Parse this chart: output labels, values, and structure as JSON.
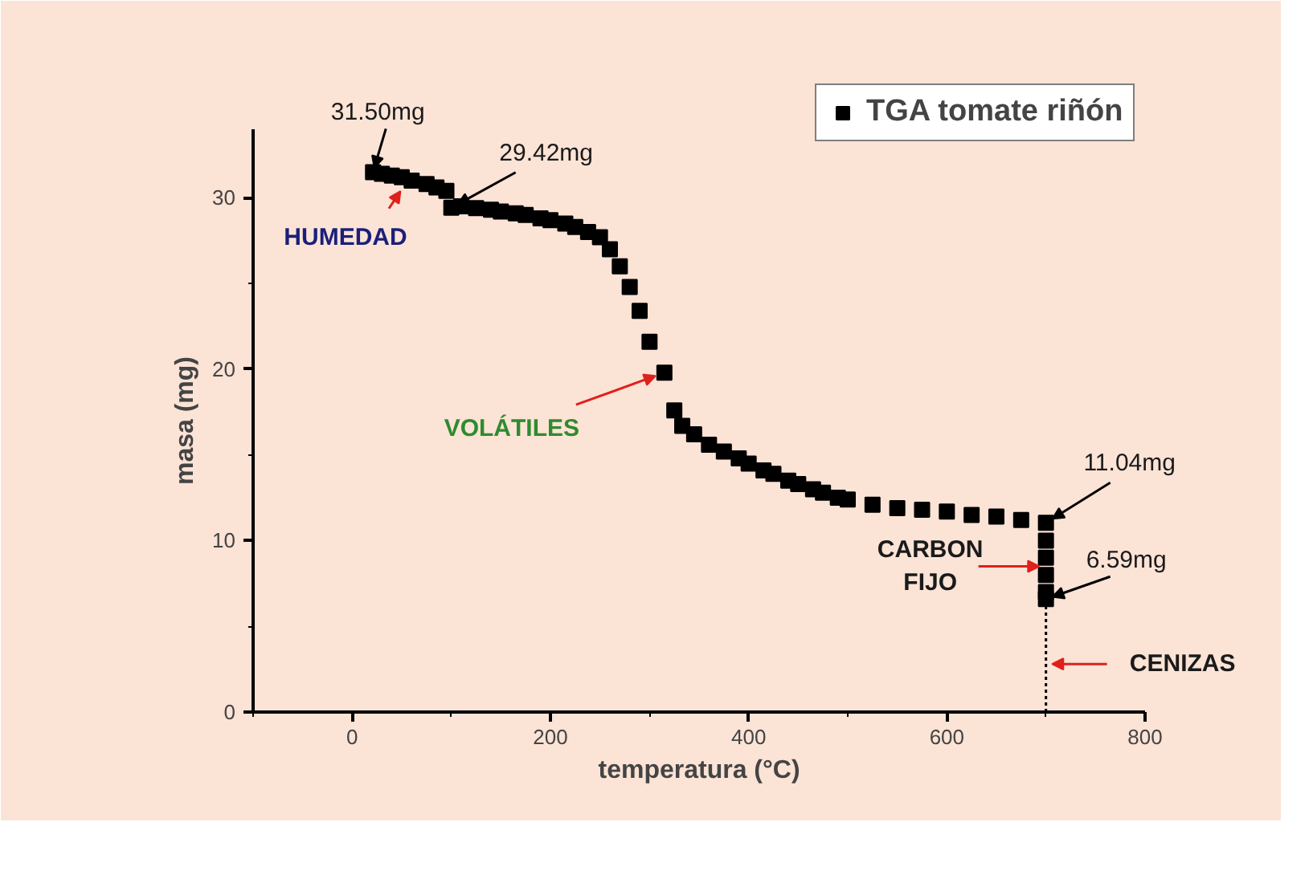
{
  "chart_data": {
    "type": "scatter",
    "xlabel": "temperatura (°C)",
    "ylabel": "masa (mg)",
    "x": [
      21,
      30,
      40,
      50,
      60,
      75,
      85,
      95,
      100,
      110,
      125,
      140,
      150,
      165,
      175,
      190,
      200,
      215,
      225,
      238,
      250,
      260,
      270,
      280,
      290,
      300,
      315,
      325,
      333,
      345,
      360,
      375,
      390,
      400,
      415,
      425,
      440,
      450,
      465,
      475,
      490,
      500,
      525,
      550,
      575,
      600,
      625,
      650,
      675,
      700,
      700,
      700,
      700,
      700,
      700
    ],
    "series": [
      {
        "name": "TGA tomate riñón",
        "color": "#000000",
        "values": [
          31.5,
          31.4,
          31.3,
          31.2,
          31.0,
          30.8,
          30.6,
          30.4,
          29.42,
          29.5,
          29.4,
          29.3,
          29.2,
          29.1,
          29.0,
          28.8,
          28.7,
          28.5,
          28.3,
          28.0,
          27.7,
          27.0,
          26.0,
          24.8,
          23.4,
          21.6,
          19.8,
          17.6,
          16.7,
          16.2,
          15.6,
          15.2,
          14.8,
          14.5,
          14.1,
          13.9,
          13.5,
          13.3,
          13.0,
          12.8,
          12.5,
          12.4,
          12.1,
          11.9,
          11.8,
          11.7,
          11.5,
          11.4,
          11.2,
          11.04,
          10.0,
          9.0,
          8.0,
          7.0,
          6.59
        ]
      }
    ],
    "xlim": [
      -100,
      800
    ],
    "ylim": [
      0,
      34
    ],
    "xticks": [
      0,
      200,
      400,
      600,
      800
    ],
    "yticks": [
      0,
      10,
      20,
      30
    ],
    "marker": "square",
    "grid": false,
    "legend": "top right",
    "ref_lines": [
      {
        "axis": "x",
        "value": 700,
        "line_style": "dotted",
        "color": "#000000"
      }
    ],
    "annotations": [
      {
        "text": "31.50mg",
        "x": 21,
        "y": 31.5
      },
      {
        "text": "29.42mg",
        "x": 100,
        "y": 29.42
      },
      {
        "text": "HUMEDAD",
        "x": 50,
        "y": 30.5
      },
      {
        "text": "VOLÁTILES",
        "x": 315,
        "y": 19.8
      },
      {
        "text": "11.04mg",
        "x": 700,
        "y": 11.04
      },
      {
        "text": "6.59mg",
        "x": 700,
        "y": 6.59
      },
      {
        "text": "CARBON\nFIJO",
        "x": 700,
        "y": 8.5
      },
      {
        "text": "CENIZAS",
        "x": 700,
        "y": 2.8
      }
    ]
  }
}
